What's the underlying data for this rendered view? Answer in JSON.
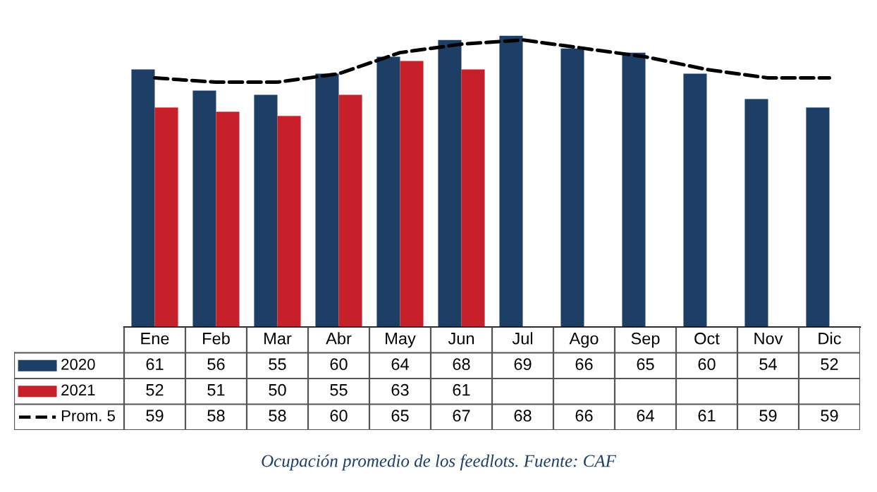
{
  "chart_data": {
    "type": "bar",
    "categories": [
      "Ene",
      "Feb",
      "Mar",
      "Abr",
      "May",
      "Jun",
      "Jul",
      "Ago",
      "Sep",
      "Oct",
      "Nov",
      "Dic"
    ],
    "series": [
      {
        "name": "2020",
        "color": "#1d3f66",
        "values": [
          61,
          56,
          55,
          60,
          64,
          68,
          69,
          66,
          65,
          60,
          54,
          52
        ]
      },
      {
        "name": "2021",
        "color": "#c8202a",
        "values": [
          52,
          51,
          50,
          55,
          63,
          61,
          null,
          null,
          null,
          null,
          null,
          null
        ]
      },
      {
        "name": "Prom. 5",
        "type": "line",
        "line_style": "dashed",
        "color": "#000000",
        "values": [
          59,
          58,
          58,
          60,
          65,
          67,
          68,
          66,
          64,
          61,
          59,
          59
        ]
      }
    ],
    "data_labels": true,
    "legend": "left",
    "annotations": [
      "Ocupación promedio de los feedlots. Fuente: CAF"
    ]
  }
}
